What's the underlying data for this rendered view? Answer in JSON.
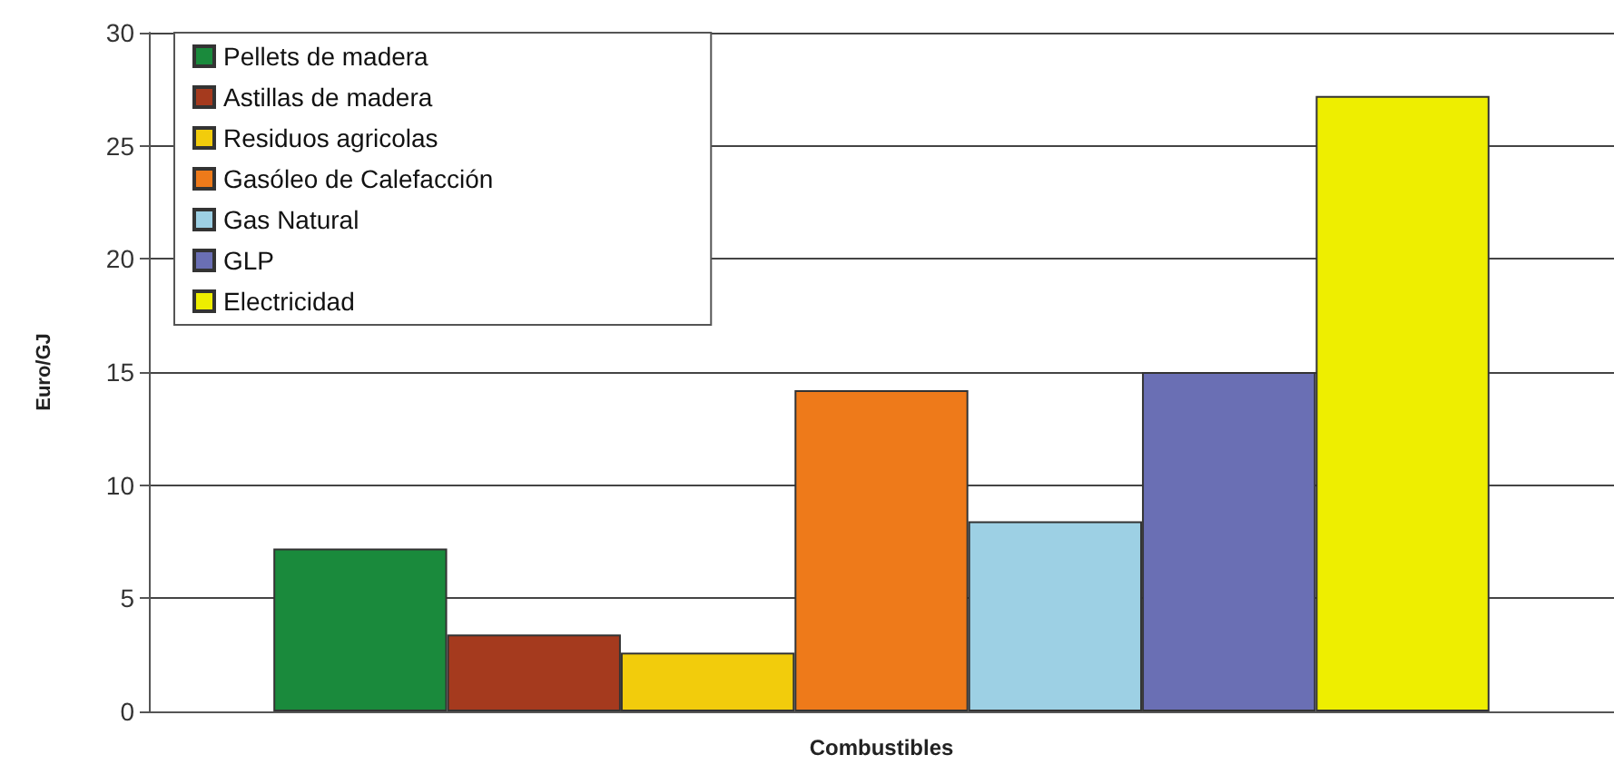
{
  "chart_data": {
    "type": "bar",
    "ylabel": "Euro/GJ",
    "categories": [
      "Combustibles"
    ],
    "series": [
      {
        "name": "Pellets de madera",
        "color": "#1a8a3c",
        "values": [
          7.2
        ]
      },
      {
        "name": "Astillas de madera",
        "color": "#a53a1e",
        "values": [
          3.4
        ]
      },
      {
        "name": "Residuos agricolas",
        "color": "#f2cc0c",
        "values": [
          2.6
        ]
      },
      {
        "name": "Gasóleo de Calefacción",
        "color": "#ee7a1a",
        "values": [
          14.2
        ]
      },
      {
        "name": "Gas Natural",
        "color": "#9dd0e4",
        "values": [
          8.4
        ]
      },
      {
        "name": "GLP",
        "color": "#6a6fb4",
        "values": [
          15.0
        ]
      },
      {
        "name": "Electricidad",
        "color": "#eeee00",
        "values": [
          27.2
        ]
      }
    ],
    "ylim": [
      0,
      30
    ],
    "yticks": [
      0,
      5,
      10,
      15,
      20,
      25,
      30
    ],
    "grid": "y",
    "legend": "top left"
  }
}
